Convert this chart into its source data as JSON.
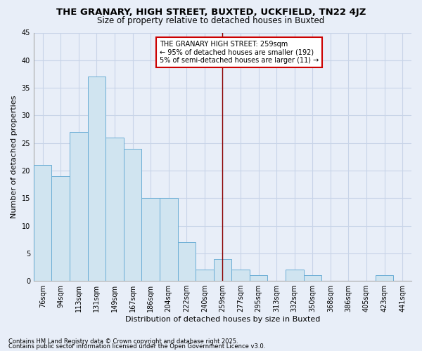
{
  "title": "THE GRANARY, HIGH STREET, BUXTED, UCKFIELD, TN22 4JZ",
  "subtitle": "Size of property relative to detached houses in Buxted",
  "xlabel": "Distribution of detached houses by size in Buxted",
  "ylabel": "Number of detached properties",
  "categories": [
    "76sqm",
    "94sqm",
    "113sqm",
    "131sqm",
    "149sqm",
    "167sqm",
    "186sqm",
    "204sqm",
    "222sqm",
    "240sqm",
    "259sqm",
    "277sqm",
    "295sqm",
    "313sqm",
    "332sqm",
    "350sqm",
    "368sqm",
    "386sqm",
    "405sqm",
    "423sqm",
    "441sqm"
  ],
  "values": [
    21,
    19,
    27,
    37,
    26,
    24,
    15,
    15,
    7,
    2,
    4,
    2,
    1,
    0,
    2,
    1,
    0,
    0,
    0,
    1,
    0
  ],
  "bar_color": "#d0e4f0",
  "bar_edge_color": "#6aadd5",
  "vline_x": 10,
  "vline_color": "#8b0000",
  "annotation_text": "THE GRANARY HIGH STREET: 259sqm\n← 95% of detached houses are smaller (192)\n5% of semi-detached houses are larger (11) →",
  "annotation_box_color": "#ffffff",
  "annotation_box_edge_color": "#cc0000",
  "ylim": [
    0,
    45
  ],
  "yticks": [
    0,
    5,
    10,
    15,
    20,
    25,
    30,
    35,
    40,
    45
  ],
  "background_color": "#e8eef8",
  "grid_color": "#c8d4e8",
  "footer_line1": "Contains HM Land Registry data © Crown copyright and database right 2025.",
  "footer_line2": "Contains public sector information licensed under the Open Government Licence v3.0.",
  "title_fontsize": 9.5,
  "subtitle_fontsize": 8.5,
  "axis_label_fontsize": 8,
  "tick_fontsize": 7,
  "annotation_fontsize": 7,
  "footer_fontsize": 6
}
